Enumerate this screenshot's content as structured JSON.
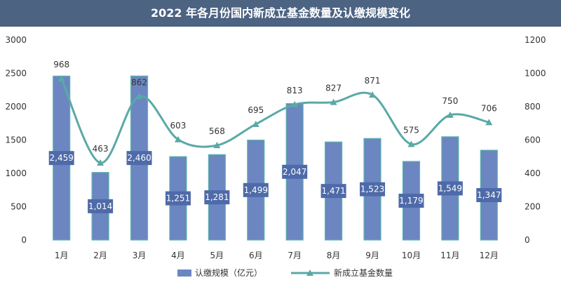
{
  "chart_data": {
    "type": "bar+line",
    "title": "2022 年各月份国内新成立基金数量及认缴规模变化",
    "categories": [
      "1月",
      "2月",
      "3月",
      "4月",
      "5月",
      "6月",
      "7月",
      "8月",
      "9月",
      "10月",
      "11月",
      "12月"
    ],
    "series": [
      {
        "name": "认缴规模（亿元）",
        "type": "bar",
        "axis": "left",
        "values": [
          2459,
          1014,
          2460,
          1251,
          1281,
          1499,
          2047,
          1471,
          1523,
          1179,
          1549,
          1347
        ],
        "labels": [
          "2,459",
          "1,014",
          "2,460",
          "1,251",
          "1,281",
          "1,499",
          "2,047",
          "1,471",
          "1,523",
          "1,179",
          "1,549",
          "1,347"
        ]
      },
      {
        "name": "新成立基金数量",
        "type": "line",
        "axis": "right",
        "values": [
          968,
          463,
          862,
          603,
          568,
          695,
          813,
          827,
          871,
          575,
          750,
          706
        ],
        "labels": [
          "968",
          "463",
          "862",
          "603",
          "568",
          "695",
          "813",
          "827",
          "871",
          "575",
          "750",
          "706"
        ]
      }
    ],
    "y_left": {
      "min": 0,
      "max": 3000,
      "ticks": [
        "0",
        "500",
        "1000",
        "1500",
        "2000",
        "2500",
        "3000"
      ]
    },
    "y_right": {
      "min": 0,
      "max": 1200,
      "ticks": [
        "0",
        "200",
        "400",
        "600",
        "800",
        "1000",
        "1200"
      ]
    },
    "legend_position": "bottom",
    "grid": false,
    "colors": {
      "bar": "#6b86c1",
      "bar_edge": "#5fb3b0",
      "line": "#5aa9a6",
      "label_box": "#4e6aa8",
      "title_bg": "#4c6382"
    }
  }
}
